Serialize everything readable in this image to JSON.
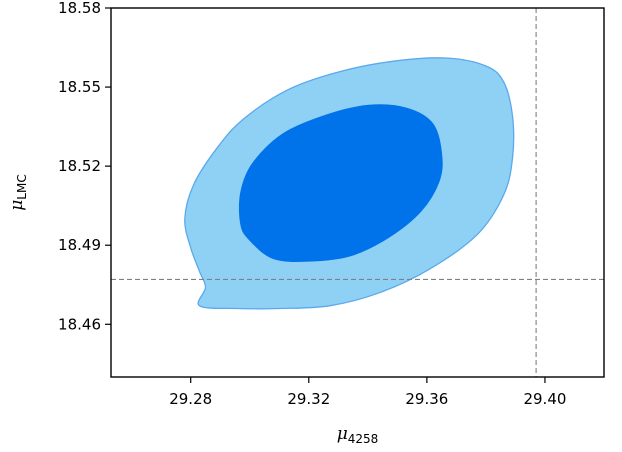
{
  "chart_data": {
    "type": "contour",
    "xlabel": "μ",
    "xlabel_sub": "4258",
    "ylabel": "μ",
    "ylabel_sub": "LMC",
    "xlim": [
      29.253,
      29.42
    ],
    "ylim": [
      18.44,
      18.58
    ],
    "x_ticks": [
      29.28,
      29.32,
      29.36,
      29.4
    ],
    "x_tick_labels": [
      "29.28",
      "29.32",
      "29.36",
      "29.40"
    ],
    "y_ticks": [
      18.46,
      18.49,
      18.52,
      18.55,
      18.58
    ],
    "y_tick_labels": [
      "18.46",
      "18.49",
      "18.52",
      "18.55",
      "18.58"
    ],
    "reference_lines": {
      "x": 29.397,
      "y": 18.477,
      "style": "dashed",
      "color": "#808080"
    },
    "grid": false,
    "contours": [
      {
        "level": "outer",
        "fill": "#8fd1f5",
        "stroke": "#5aa9ec",
        "points": [
          [
            29.283,
            18.467
          ],
          [
            29.285,
            18.474
          ],
          [
            29.283,
            18.48
          ],
          [
            29.28,
            18.489
          ],
          [
            29.278,
            18.5
          ],
          [
            29.281,
            18.513
          ],
          [
            29.289,
            18.527
          ],
          [
            29.298,
            18.538
          ],
          [
            29.313,
            18.549
          ],
          [
            29.331,
            18.556
          ],
          [
            29.35,
            18.56
          ],
          [
            29.367,
            18.561
          ],
          [
            29.38,
            18.558
          ],
          [
            29.386,
            18.552
          ],
          [
            29.389,
            18.539
          ],
          [
            29.389,
            18.523
          ],
          [
            29.386,
            18.509
          ],
          [
            29.377,
            18.494
          ],
          [
            29.361,
            18.481
          ],
          [
            29.344,
            18.472
          ],
          [
            29.327,
            18.467
          ],
          [
            29.31,
            18.466
          ],
          [
            29.296,
            18.466
          ]
        ]
      },
      {
        "level": "inner",
        "fill": "#0072ea",
        "stroke": "#0072ea",
        "points": [
          [
            29.3,
            18.492
          ],
          [
            29.297,
            18.498
          ],
          [
            29.297,
            18.51
          ],
          [
            29.301,
            18.521
          ],
          [
            29.311,
            18.532
          ],
          [
            29.325,
            18.539
          ],
          [
            29.34,
            18.543
          ],
          [
            29.353,
            18.542
          ],
          [
            29.362,
            18.536
          ],
          [
            29.365,
            18.524
          ],
          [
            29.364,
            18.514
          ],
          [
            29.358,
            18.503
          ],
          [
            29.347,
            18.493
          ],
          [
            29.334,
            18.486
          ],
          [
            29.32,
            18.484
          ],
          [
            29.308,
            18.485
          ]
        ]
      }
    ]
  }
}
